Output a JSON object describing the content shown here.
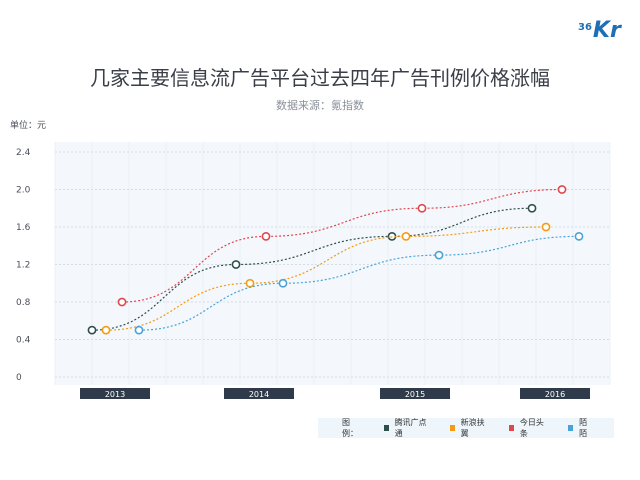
{
  "brand": {
    "logo_small": "36",
    "logo_big": "Kr",
    "color": "#1f6fb5"
  },
  "header": {
    "title": "几家主要信息流广告平台过去四年广告刊例价格涨幅",
    "source": "数据来源：氪指数",
    "unit": "单位：元"
  },
  "legend": {
    "title": "图例："
  },
  "chart_data": {
    "type": "line",
    "title": "几家主要信息流广告平台过去四年广告刊例价格涨幅",
    "categories": [
      "2013",
      "2014",
      "2015",
      "2016"
    ],
    "ylim": [
      0,
      2.4
    ],
    "y_ticks": [
      "0",
      "0.4",
      "0.8",
      "1.2",
      "1.6",
      "2.0",
      "2.4"
    ],
    "grid": true,
    "legend_position": "bottom-right",
    "series": [
      {
        "name": "腾讯广点通",
        "color": "#2f4f4f",
        "points": [
          {
            "x": "2013",
            "y": 0.5
          },
          {
            "x": "2014",
            "y": 1.2
          },
          {
            "x": "2015",
            "y": 1.5
          },
          {
            "x": "2016",
            "y": 1.8
          }
        ]
      },
      {
        "name": "新浪扶翼",
        "color": "#f39c12",
        "points": [
          {
            "x": "2013",
            "y": 0.5
          },
          {
            "x": "2014",
            "y": 1.0
          },
          {
            "x": "2015",
            "y": 1.5
          },
          {
            "x": "2016",
            "y": 1.6
          }
        ]
      },
      {
        "name": "今日头条",
        "color": "#e0474c",
        "points": [
          {
            "x": "2013",
            "y": 0.8
          },
          {
            "x": "2014",
            "y": 1.5
          },
          {
            "x": "2015",
            "y": 1.8
          },
          {
            "x": "2016",
            "y": 2.0
          }
        ]
      },
      {
        "name": "陌陌",
        "color": "#4aa3d6",
        "points": [
          {
            "x": "2013",
            "y": 0.5
          },
          {
            "x": "2014",
            "y": 1.0
          },
          {
            "x": "2015",
            "y": 1.3
          },
          {
            "x": "2016",
            "y": 1.5
          }
        ]
      }
    ]
  }
}
